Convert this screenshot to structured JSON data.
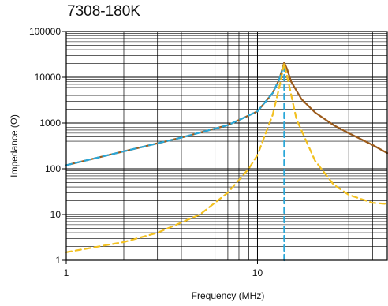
{
  "chart_data": {
    "type": "line",
    "title": "7308-180K",
    "xlabel": "Frequency (MHz)",
    "ylabel": "Impedance (Ω)",
    "x_scale": "log",
    "y_scale": "log",
    "xlim": [
      1,
      47.7
    ],
    "ylim": [
      1,
      100000
    ],
    "x_tick_labels": [
      {
        "value": 1,
        "label": "1"
      },
      {
        "value": 10,
        "label": "10"
      }
    ],
    "y_tick_labels": [
      {
        "value": 1,
        "label": "1"
      },
      {
        "value": 10,
        "label": "10"
      },
      {
        "value": 100,
        "label": "100"
      },
      {
        "value": 1000,
        "label": "1000"
      },
      {
        "value": 10000,
        "label": "10000"
      },
      {
        "value": 100000,
        "label": "100000"
      }
    ],
    "grid": true,
    "series": [
      {
        "style": "solid",
        "color": "#9b5a1a",
        "x": [
          1,
          2,
          4,
          7,
          10,
          12,
          13,
          13.8,
          14.3,
          15,
          17,
          20,
          25,
          30,
          40,
          47.7
        ],
        "y": [
          120,
          240,
          480,
          900,
          1800,
          4500,
          9000,
          21000,
          15000,
          8000,
          3300,
          1700,
          900,
          600,
          330,
          220
        ]
      },
      {
        "style": "dashed",
        "color": "#2aa7d8",
        "x": [
          1,
          2,
          4,
          7,
          10,
          12,
          13,
          13.8
        ],
        "y": [
          120,
          240,
          480,
          900,
          1800,
          4500,
          9000,
          19000
        ]
      },
      {
        "style": "dashed-vertical",
        "color": "#2aa7d8",
        "x": [
          13.8,
          13.8
        ],
        "y": [
          1,
          19000
        ]
      },
      {
        "style": "dashed",
        "color": "#f2c020",
        "x": [
          1,
          2,
          3,
          5,
          7,
          9,
          10,
          12,
          13,
          13.8,
          14.5,
          16,
          20,
          25,
          30,
          40,
          47.7
        ],
        "y": [
          1.5,
          2.5,
          4,
          10,
          30,
          100,
          200,
          1500,
          6000,
          20000,
          8000,
          1200,
          150,
          45,
          27,
          18,
          17
        ]
      }
    ]
  }
}
